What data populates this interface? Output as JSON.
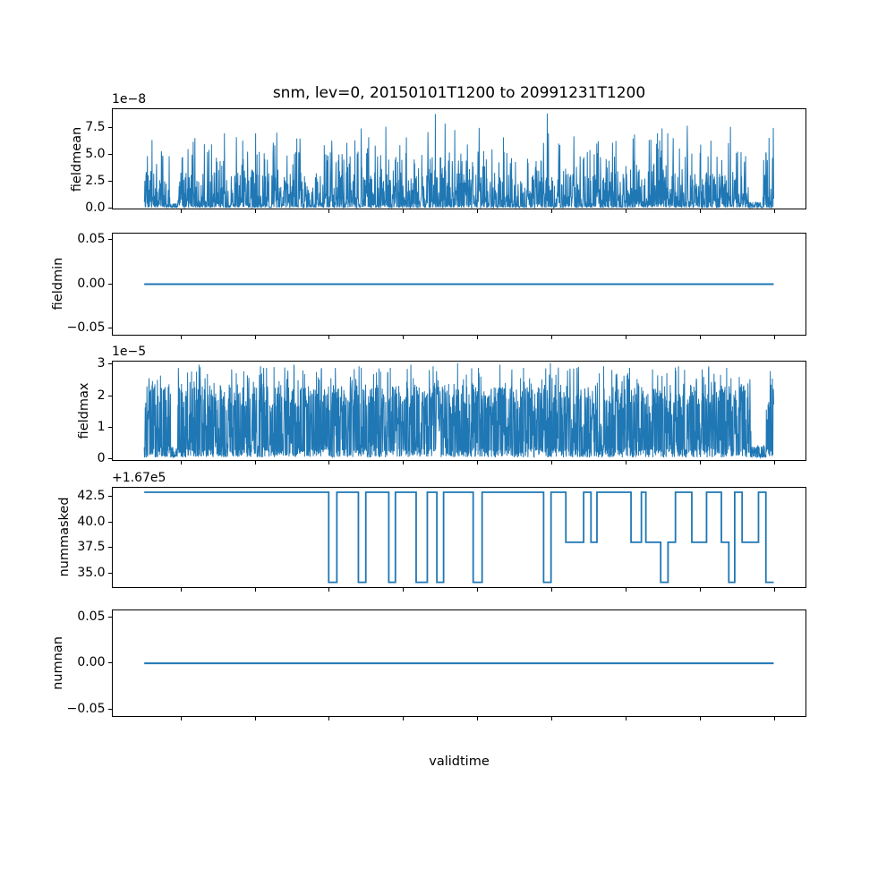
{
  "chart_data": {
    "type": "line",
    "title": "snm, lev=0, 20150101T1200 to 20991231T1200",
    "xlabel": "validtime",
    "xlim": [
      2010.75,
      2104.25
    ],
    "xticks": [
      2020,
      2030,
      2040,
      2050,
      2060,
      2070,
      2080,
      2090,
      2100
    ],
    "xtick_rotation": 30,
    "grid": false,
    "legend": "none",
    "line_color": "#1f77b4",
    "layout": "5 stacked subplots sharing the validtime x axis, each subplot shows partial rotated year tick labels clipped by the subplot below",
    "panels": [
      {
        "ylabel": "fieldmean",
        "offset_text": "1e−8",
        "unit": "1e-8",
        "ytick_labels": [
          "0.0",
          "2.5",
          "5.0",
          "7.5"
        ],
        "ytick_values": [
          0,
          2.5,
          5.0,
          7.5
        ],
        "ylim": [
          -0.083,
          9.256
        ],
        "ylabel_x": 86,
        "series": {
          "kind": "noisy-spikes",
          "description": "daily field mean, dense noise band 0-3.5e-8 with spikes up to 8.85e-8, near-zero gaps around 2019 and 2097-2098.5",
          "range": [
            2015.0,
            2099.95
          ],
          "n": 2200,
          "seed": 42,
          "floor": 0.02,
          "scale": 3.3,
          "pow": 2.0,
          "p1": 0.14,
          "m1": [
            3.3,
            5.3
          ],
          "p2": 0.03,
          "m2": [
            5.2,
            7.0
          ],
          "zero_p": 0.28,
          "gaps": [
            [
              2018.55,
              2019.5,
              0.35
            ],
            [
              2096.6,
              2098.5,
              0.5
            ]
          ],
          "peaks": [
            [
              2017.3,
              5.3
            ],
            [
              2021.6,
              6.2
            ],
            [
              2025.8,
              7.0
            ],
            [
              2028.3,
              6.3
            ],
            [
              2032.9,
              7.05
            ],
            [
              2036.0,
              6.5
            ],
            [
              2040.3,
              6.3
            ],
            [
              2044.3,
              7.45
            ],
            [
              2047.6,
              7.6
            ],
            [
              2050.4,
              6.6
            ],
            [
              2053.3,
              7.1
            ],
            [
              2054.3,
              8.8
            ],
            [
              2055.6,
              7.9
            ],
            [
              2056.9,
              7.3
            ],
            [
              2060.2,
              7.5
            ],
            [
              2063.5,
              6.6
            ],
            [
              2069.4,
              8.85
            ],
            [
              2073.0,
              6.7
            ],
            [
              2078.2,
              6.1
            ],
            [
              2081.0,
              6.5
            ],
            [
              2084.9,
              7.45
            ],
            [
              2088.3,
              7.7
            ],
            [
              2091.5,
              6.3
            ],
            [
              2094.1,
              7.6
            ],
            [
              2098.9,
              5.2
            ],
            [
              2099.9,
              7.5
            ]
          ]
        }
      },
      {
        "ylabel": "fieldmin",
        "offset_text": null,
        "ytick_labels": [
          "−0.05",
          "0.00",
          "0.05"
        ],
        "ytick_values": [
          -0.05,
          0.0,
          0.05
        ],
        "ylim": [
          -0.0582,
          0.0579
        ],
        "ylabel_x": 65,
        "series": {
          "kind": "constant",
          "value": 0.0,
          "range": [
            2015.0,
            2099.95
          ]
        }
      },
      {
        "ylabel": "fieldmax",
        "offset_text": "1e−5",
        "unit": "1e-5",
        "ytick_labels": [
          "0",
          "1",
          "2",
          "3"
        ],
        "ytick_values": [
          0,
          1,
          2,
          3
        ],
        "ylim": [
          -0.071,
          3.102
        ],
        "ylabel_x": 94,
        "series": {
          "kind": "noisy-spikes",
          "description": "daily field max, solid noise band 0-2.5e-5 with peaks to 3.05e-5, notch around 2019 and 2097-2099",
          "range": [
            2015.0,
            2099.95
          ],
          "n": 2600,
          "seed": 7,
          "floor": 0.03,
          "scale": 2.25,
          "pow": 1.4,
          "p1": 0.3,
          "m1": [
            1.6,
            2.4
          ],
          "p2": 0.06,
          "m2": [
            2.4,
            2.95
          ],
          "zero_p": 0.3,
          "gaps": [
            [
              2018.55,
              2019.5,
              0.5
            ],
            [
              2096.9,
              2098.9,
              0.9
            ]
          ],
          "peaks": [
            [
              2017.2,
              2.65
            ],
            [
              2022.4,
              3.0
            ],
            [
              2026.8,
              2.85
            ],
            [
              2031.5,
              2.9
            ],
            [
              2035.2,
              3.0
            ],
            [
              2040.8,
              2.9
            ],
            [
              2044.0,
              2.95
            ],
            [
              2048.2,
              2.9
            ],
            [
              2051.0,
              3.0
            ],
            [
              2054.0,
              2.95
            ],
            [
              2057.3,
              3.05
            ],
            [
              2060.1,
              2.9
            ],
            [
              2063.0,
              3.0
            ],
            [
              2066.2,
              2.9
            ],
            [
              2069.8,
              3.05
            ],
            [
              2073.4,
              2.9
            ],
            [
              2077.0,
              2.95
            ],
            [
              2080.5,
              2.9
            ],
            [
              2083.6,
              2.85
            ],
            [
              2087.1,
              2.95
            ],
            [
              2090.3,
              2.85
            ],
            [
              2093.6,
              2.9
            ],
            [
              2099.8,
              2.55
            ]
          ]
        }
      },
      {
        "ylabel": "nummasked",
        "offset_text": "+1.67e5",
        "offset_base": 167000,
        "ytick_labels": [
          "35.0",
          "37.5",
          "40.0",
          "42.5"
        ],
        "ytick_values": [
          35.0,
          37.5,
          40.0,
          42.5
        ],
        "ylim": [
          33.545,
          43.448
        ],
        "ylabel_x": 72,
        "series": {
          "kind": "steps",
          "description": "number of masked points: plateaus at 167043 with drops to 167038 and 167034; values shown relative to +1.67e5 offset",
          "levels": {
            "high": 43,
            "mid": 38,
            "low": 34
          },
          "end": 2099.95,
          "points": [
            [
              2015.0,
              43
            ],
            [
              2039.9,
              34
            ],
            [
              2041.0,
              43
            ],
            [
              2043.9,
              34
            ],
            [
              2044.9,
              43
            ],
            [
              2048.0,
              34
            ],
            [
              2048.9,
              43
            ],
            [
              2051.7,
              34
            ],
            [
              2053.2,
              43
            ],
            [
              2054.5,
              34
            ],
            [
              2055.4,
              43
            ],
            [
              2059.4,
              34
            ],
            [
              2060.6,
              43
            ],
            [
              2068.9,
              34
            ],
            [
              2069.9,
              43
            ],
            [
              2071.9,
              38
            ],
            [
              2074.3,
              43
            ],
            [
              2075.3,
              38
            ],
            [
              2076.1,
              43
            ],
            [
              2080.7,
              38
            ],
            [
              2082.1,
              43
            ],
            [
              2082.7,
              38
            ],
            [
              2084.7,
              34
            ],
            [
              2085.7,
              38
            ],
            [
              2086.7,
              43
            ],
            [
              2088.9,
              38
            ],
            [
              2090.9,
              43
            ],
            [
              2092.9,
              38
            ],
            [
              2093.9,
              34
            ],
            [
              2094.7,
              43
            ],
            [
              2095.7,
              38
            ],
            [
              2097.9,
              43
            ],
            [
              2098.9,
              34
            ]
          ]
        }
      },
      {
        "ylabel": "numnan",
        "offset_text": null,
        "ytick_labels": [
          "−0.05",
          "0.00",
          "0.05"
        ],
        "ytick_values": [
          -0.05,
          0.0,
          0.05
        ],
        "ylim": [
          -0.0587,
          0.0586
        ],
        "ylabel_x": 65,
        "series": {
          "kind": "constant",
          "value": 0.0,
          "range": [
            2015.0,
            2099.95
          ]
        }
      }
    ]
  }
}
